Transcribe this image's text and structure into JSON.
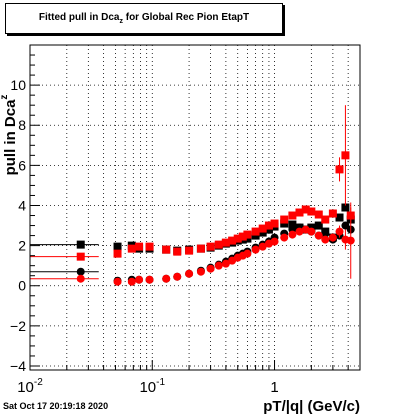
{
  "chart_data": {
    "type": "scatter",
    "title": "Fitted pull in Dca",
    "title_subscript": "z",
    "title_suffix": " for Global Rec Pion EtapT",
    "xlabel": "pT/|q| (GeV/c)",
    "ylabel": "pull in Dca",
    "ylabel_subscript": "z",
    "x_scale": "log",
    "xlim": [
      0.01,
      5.0
    ],
    "ylim": [
      -4.2,
      12
    ],
    "grid": true,
    "y_ticks": [
      -4,
      -2,
      0,
      2,
      4,
      6,
      8,
      10
    ],
    "x_ticks": [
      {
        "value": 0.01,
        "label": "10",
        "exp": "-2"
      },
      {
        "value": 0.1,
        "label": "10",
        "exp": "-1"
      },
      {
        "value": 1,
        "label": "1",
        "exp": ""
      }
    ],
    "series": [
      {
        "color": "#000000",
        "marker": "square",
        "x": [
          0.026,
          0.052,
          0.068,
          0.078,
          0.095,
          0.13,
          0.16,
          0.2,
          0.25,
          0.3,
          0.35,
          0.4,
          0.45,
          0.5,
          0.55,
          0.6,
          0.7,
          0.8,
          0.9,
          1.0,
          1.2,
          1.4,
          1.6,
          1.8,
          2.0,
          2.3,
          2.6,
          3.0,
          3.4,
          3.8,
          4.2
        ],
        "y": [
          2.05,
          1.95,
          2.0,
          1.85,
          1.85,
          1.8,
          1.75,
          1.8,
          1.85,
          1.9,
          2.0,
          2.1,
          2.15,
          2.25,
          2.3,
          2.35,
          2.5,
          2.65,
          2.8,
          2.95,
          3.1,
          3.05,
          2.9,
          2.8,
          2.9,
          3.0,
          2.7,
          2.4,
          3.4,
          3.9,
          3.3
        ]
      },
      {
        "color": "#000000",
        "marker": "circle",
        "x": [
          0.026,
          0.052,
          0.068,
          0.078,
          0.095,
          0.13,
          0.16,
          0.2,
          0.25,
          0.3,
          0.35,
          0.4,
          0.45,
          0.5,
          0.55,
          0.6,
          0.7,
          0.8,
          0.9,
          1.0,
          1.2,
          1.4,
          1.6,
          1.8,
          2.0,
          2.3,
          2.6,
          3.0,
          3.4,
          3.8,
          4.2
        ],
        "y": [
          0.7,
          0.25,
          0.3,
          0.3,
          0.3,
          0.35,
          0.45,
          0.6,
          0.75,
          0.9,
          1.05,
          1.2,
          1.35,
          1.5,
          1.6,
          1.7,
          1.9,
          2.05,
          2.2,
          2.4,
          2.6,
          2.8,
          2.9,
          2.8,
          2.7,
          2.5,
          2.6,
          2.3,
          2.5,
          3.0,
          2.8
        ]
      },
      {
        "color": "#ff0000",
        "marker": "square",
        "x": [
          0.026,
          0.052,
          0.068,
          0.078,
          0.095,
          0.13,
          0.16,
          0.2,
          0.25,
          0.3,
          0.35,
          0.4,
          0.45,
          0.5,
          0.55,
          0.6,
          0.7,
          0.8,
          0.9,
          1.0,
          1.2,
          1.4,
          1.6,
          1.8,
          2.0,
          2.3,
          2.6,
          3.0,
          3.4,
          3.8,
          4.2
        ],
        "y": [
          1.45,
          1.6,
          1.85,
          1.95,
          1.95,
          1.8,
          1.7,
          1.75,
          1.85,
          1.95,
          2.05,
          2.15,
          2.25,
          2.35,
          2.45,
          2.55,
          2.7,
          2.85,
          3.0,
          3.1,
          3.3,
          3.5,
          3.65,
          3.8,
          3.7,
          3.55,
          3.3,
          3.6,
          5.8,
          6.5,
          3.5
        ],
        "err": [
          0.05,
          0.05,
          0.05,
          0.05,
          0.05,
          0.05,
          0.05,
          0.05,
          0.05,
          0.05,
          0.05,
          0.05,
          0.05,
          0.05,
          0.05,
          0.05,
          0.05,
          0.05,
          0.05,
          0.05,
          0.05,
          0.05,
          0.1,
          0.1,
          0.1,
          0.1,
          0.15,
          0.2,
          0.6,
          2.5,
          0.4
        ]
      },
      {
        "color": "#ff0000",
        "marker": "circle",
        "x": [
          0.026,
          0.052,
          0.068,
          0.078,
          0.095,
          0.13,
          0.16,
          0.2,
          0.25,
          0.3,
          0.35,
          0.4,
          0.45,
          0.5,
          0.55,
          0.6,
          0.7,
          0.8,
          0.9,
          1.0,
          1.2,
          1.4,
          1.6,
          1.8,
          2.0,
          2.3,
          2.6,
          3.0,
          3.4,
          3.8,
          4.2
        ],
        "y": [
          0.35,
          0.2,
          0.2,
          0.3,
          0.3,
          0.35,
          0.45,
          0.6,
          0.7,
          0.85,
          1.0,
          1.1,
          1.25,
          1.4,
          1.5,
          1.6,
          1.8,
          1.95,
          2.1,
          2.2,
          2.4,
          2.55,
          2.7,
          2.8,
          2.7,
          2.5,
          2.3,
          2.4,
          2.7,
          2.3,
          2.25
        ],
        "err": [
          0.05,
          0.05,
          0.05,
          0.05,
          0.05,
          0.05,
          0.05,
          0.05,
          0.05,
          0.05,
          0.05,
          0.05,
          0.05,
          0.05,
          0.05,
          0.05,
          0.05,
          0.05,
          0.05,
          0.05,
          0.05,
          0.05,
          0.1,
          0.1,
          0.1,
          0.1,
          0.15,
          0.2,
          0.3,
          0.5,
          1.9
        ]
      }
    ]
  },
  "timestamp": "Sat Oct 17 20:19:18 2020"
}
